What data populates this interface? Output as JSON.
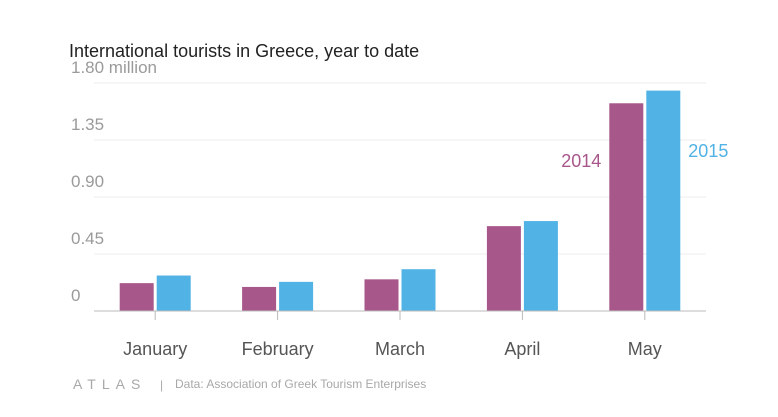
{
  "chart_data": {
    "type": "bar",
    "title": "International tourists in Greece, year to date",
    "categories": [
      "January",
      "February",
      "March",
      "April",
      "May"
    ],
    "series": [
      {
        "name": "2014",
        "values": [
          0.22,
          0.19,
          0.25,
          0.67,
          1.64
        ],
        "color": "#a8578b"
      },
      {
        "name": "2015",
        "values": [
          0.28,
          0.23,
          0.33,
          0.71,
          1.74
        ],
        "color": "#51b2e5"
      }
    ],
    "yticks": [
      0,
      0.45,
      0.9,
      1.35,
      1.8
    ],
    "ytick_labels": [
      "0",
      "0.45",
      "0.90",
      "1.35",
      "1.80 million"
    ],
    "ylim": [
      0,
      1.8
    ],
    "xlabel": "",
    "ylabel": "",
    "grid": true,
    "legend": "inline labels near May bars"
  },
  "footer": {
    "brand": "ATLAS",
    "separator": "|",
    "source": "Data: Association of Greek Tourism Enterprises"
  }
}
